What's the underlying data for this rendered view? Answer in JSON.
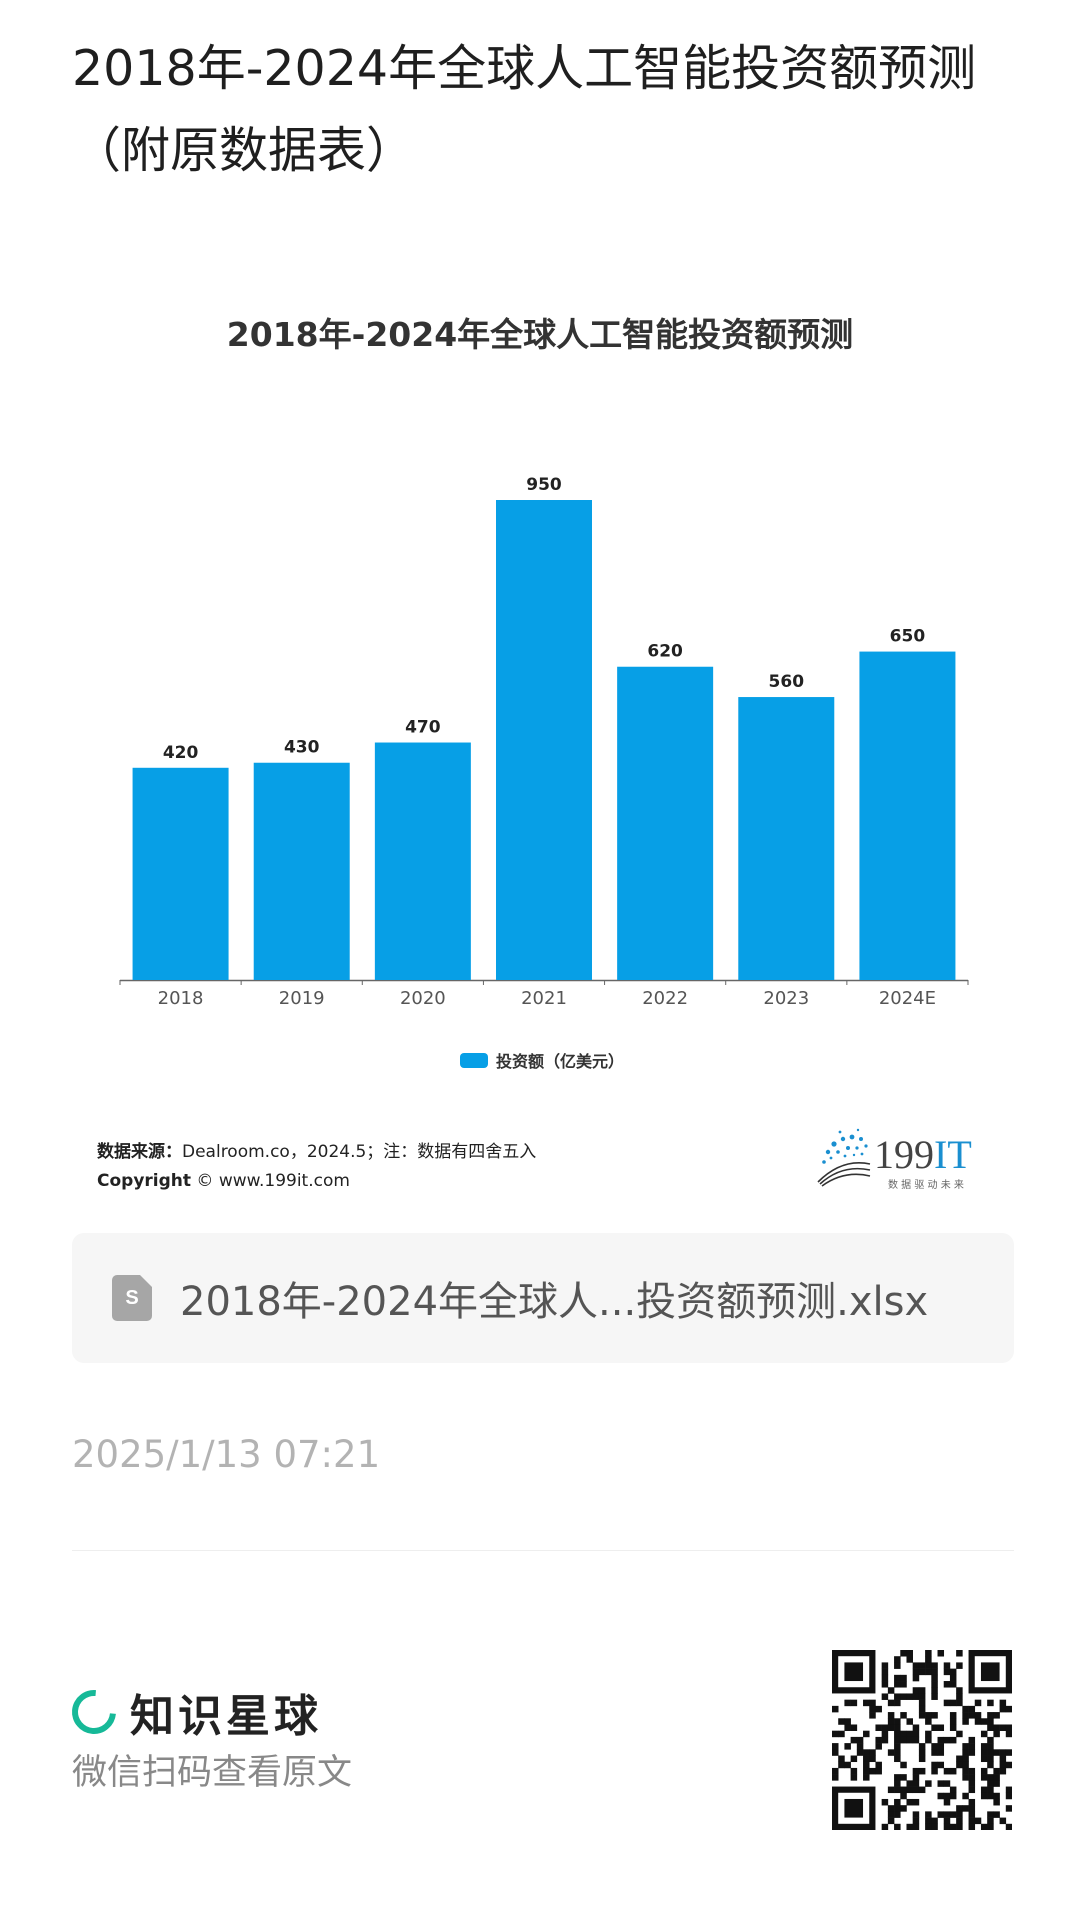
{
  "page": {
    "title": "2018年-2024年全球人工智能投资额预测（附原数据表）"
  },
  "chart_data": {
    "type": "bar",
    "title": "2018年-2024年全球人工智能投资额预测",
    "categories": [
      "2018",
      "2019",
      "2020",
      "2021",
      "2022",
      "2023",
      "2024E"
    ],
    "series": [
      {
        "name": "投资额（亿美元）",
        "values": [
          420,
          430,
          470,
          950,
          620,
          560,
          650
        ]
      }
    ],
    "xlabel": "",
    "ylabel": "",
    "ylim": [
      0,
      950
    ],
    "grid": false,
    "legend_position": "bottom",
    "data_labels": true,
    "colors": {
      "bar": "#079fe6"
    }
  },
  "source": {
    "label": "数据来源：",
    "text": "Dealroom.co，2024.5；注：数据有四舍五入",
    "copyright_label": "Copyright",
    "copyright_symbol": "©",
    "copyright_site": "www.199it.com"
  },
  "brand": {
    "name_dark": "199",
    "name_accent": "IT",
    "tagline": "数 据 驱 动 未 来"
  },
  "file": {
    "icon": "spreadsheet-file-icon",
    "icon_letter": "S",
    "name": "2018年-2024年全球人...投资额预测.xlsx"
  },
  "post": {
    "date": "2025/1/13 07:21"
  },
  "footer": {
    "logo_name": "知识星球",
    "hint": "微信扫码查看原文",
    "qr_icon": "qr-code-icon"
  },
  "colors": {
    "accent_blue": "#079fe6",
    "brand_green": "#16b998",
    "muted_text": "#b3b3b3"
  }
}
